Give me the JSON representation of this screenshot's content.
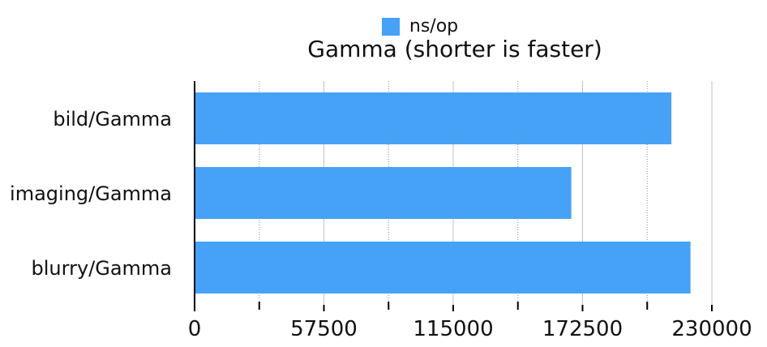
{
  "legend": {
    "label": "ns/op"
  },
  "chart_data": {
    "type": "bar",
    "orientation": "horizontal",
    "title": "Gamma (shorter is faster)",
    "categories": [
      "bild/Gamma",
      "imaging/Gamma",
      "blurry/Gamma"
    ],
    "series": [
      {
        "name": "ns/op",
        "values": [
          212000,
          167500,
          220500
        ]
      }
    ],
    "xlim": [
      0,
      230000
    ],
    "x_ticks": [
      "0",
      "57500",
      "115000",
      "172500",
      "230000"
    ],
    "grid": true,
    "legend_position": "top",
    "colors": {
      "bar": "#45a2f7",
      "axis": "#000000",
      "grid_major": "#c0c0c0",
      "grid_minor": "#8a8a8a"
    }
  }
}
